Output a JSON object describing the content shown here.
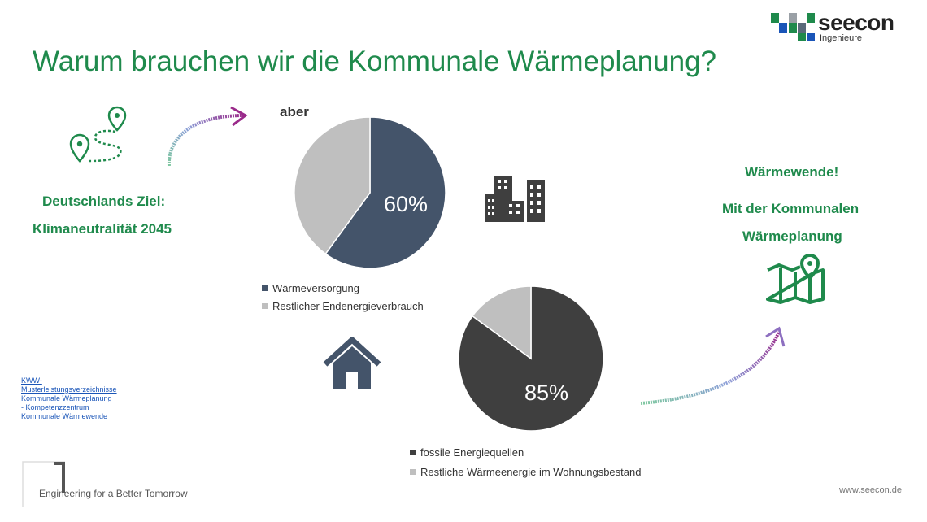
{
  "header": {
    "title": "Warum brauchen wir die Kommunale Wärmeplanung?",
    "logo_text": "seecon",
    "logo_subtitle": "Ingenieure"
  },
  "left": {
    "goal_line1": "Deutschlands Ziel:",
    "goal_line2": "Klimaneutralität 2045",
    "reference_link": "KWW-Musterleistungsverzeichnisse Kommunale Wärmeplanung - Kompetenzzentrum Kommunale Wärmewende"
  },
  "middle": {
    "aber_label": "aber"
  },
  "right": {
    "line1": "Wärmewende!",
    "line2": "Mit der Kommunalen",
    "line3": "Wärmeplanung"
  },
  "footer": {
    "tagline": "Engineering for a Better Tomorrow",
    "url": "www.seecon.de"
  },
  "icons": [
    "route-map-icon",
    "curved-arrow-icon",
    "buildings-icon",
    "house-icon",
    "map-pin-icon"
  ],
  "colors": {
    "title_green": "#1f8a4c",
    "pie1_main": "#44546a",
    "pie_rest": "#bfbfbf",
    "pie2_main": "#3f3f3f"
  },
  "chart_data": [
    {
      "type": "pie",
      "slices": [
        {
          "label": "Wärmeversorgung",
          "value": 60,
          "color": "#44546a"
        },
        {
          "label": "Restlicher Endenergieverbrauch",
          "value": 40,
          "color": "#bfbfbf"
        }
      ],
      "data_label": "60%",
      "legend_position": "bottom-left"
    },
    {
      "type": "pie",
      "slices": [
        {
          "label": "fossile Energiequellen",
          "value": 85,
          "color": "#3f3f3f"
        },
        {
          "label": "Restliche Wärmeenergie im Wohnungsbestand",
          "value": 15,
          "color": "#bfbfbf"
        }
      ],
      "data_label": "85%",
      "legend_position": "bottom"
    }
  ]
}
